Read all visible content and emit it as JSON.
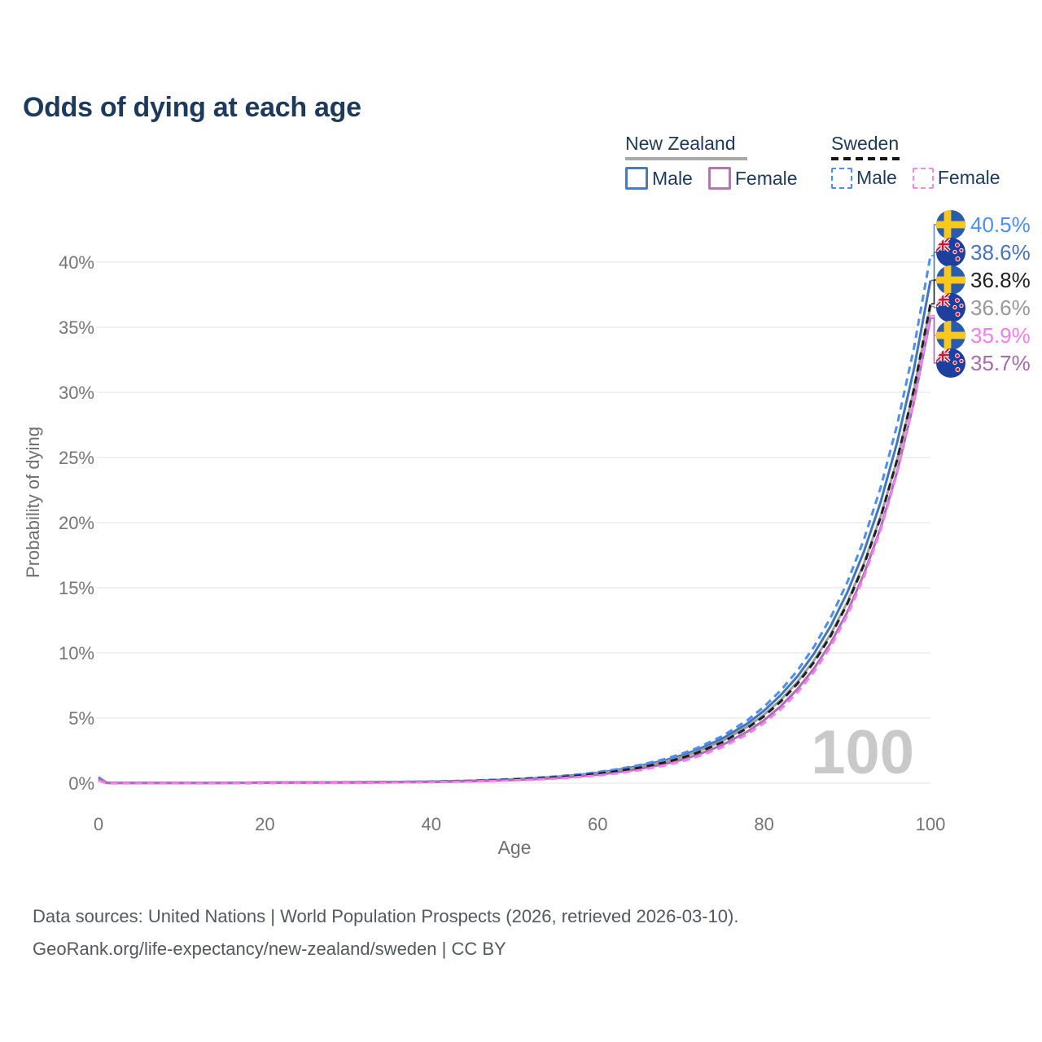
{
  "title": "Odds of dying at each age",
  "watermark_age": "100",
  "legend": {
    "groups": [
      {
        "country": "New Zealand",
        "line_style": "solid",
        "underline_color": "#a9a9a9",
        "items": [
          {
            "label": "Male",
            "color": "#4d7ab8",
            "dashed": false
          },
          {
            "label": "Female",
            "color": "#b277b2",
            "dashed": false
          }
        ]
      },
      {
        "country": "Sweden",
        "line_style": "dashed",
        "underline_color": "#161616",
        "items": [
          {
            "label": "Male",
            "color": "#4b8ef5",
            "dashed": true
          },
          {
            "label": "Female",
            "color": "#fc84ef",
            "dashed": true
          }
        ]
      }
    ]
  },
  "chart_data": {
    "type": "line",
    "title": "Odds of dying at each age",
    "xlabel": "Age",
    "ylabel": "Probability of dying",
    "xlim": [
      0,
      100
    ],
    "ylim": [
      0,
      42
    ],
    "grid": "horizontal",
    "x_ticks": [
      0,
      20,
      40,
      60,
      80,
      100
    ],
    "y_ticks": [
      0,
      5,
      10,
      15,
      20,
      25,
      30,
      35,
      40
    ],
    "y_tick_labels": [
      "0%",
      "5%",
      "10%",
      "15%",
      "20%",
      "25%",
      "30%",
      "35%",
      "40%"
    ],
    "ages": [
      0,
      1,
      2,
      5,
      10,
      15,
      20,
      25,
      30,
      35,
      40,
      45,
      50,
      52,
      55,
      58,
      60,
      62,
      65,
      68,
      70,
      72,
      75,
      78,
      80,
      82,
      84,
      86,
      88,
      90,
      92,
      94,
      96,
      98,
      100
    ],
    "series": [
      {
        "key": "nz_male",
        "name": "New Zealand Male",
        "country": "New Zealand",
        "sex": "Male",
        "color": "#4574bd",
        "dashed": false,
        "values": [
          0.45,
          0.03,
          0.02,
          0.015,
          0.01,
          0.015,
          0.05,
          0.06,
          0.07,
          0.09,
          0.12,
          0.19,
          0.3,
          0.37,
          0.49,
          0.65,
          0.8,
          0.98,
          1.31,
          1.74,
          2.11,
          2.56,
          3.43,
          4.58,
          5.56,
          6.75,
          8.19,
          9.94,
          12.06,
          14.64,
          17.77,
          21.56,
          26.17,
          31.76,
          38.6
        ]
      },
      {
        "key": "nz_overall",
        "name": "New Zealand Both sexes",
        "country": "New Zealand",
        "sex": "Both",
        "color": "#9d9d9d",
        "dashed": false,
        "values": [
          0.4,
          0.025,
          0.018,
          0.012,
          0.01,
          0.012,
          0.04,
          0.05,
          0.06,
          0.08,
          0.11,
          0.18,
          0.29,
          0.35,
          0.46,
          0.61,
          0.75,
          0.92,
          1.23,
          1.64,
          1.99,
          2.42,
          3.24,
          4.34,
          5.26,
          6.39,
          7.76,
          9.42,
          11.43,
          13.88,
          16.85,
          20.46,
          24.83,
          30.15,
          36.6
        ]
      },
      {
        "key": "nz_female",
        "name": "New Zealand Female",
        "country": "New Zealand",
        "sex": "Female",
        "color": "#aa6fb5",
        "dashed": false,
        "values": [
          0.38,
          0.02,
          0.015,
          0.01,
          0.008,
          0.01,
          0.03,
          0.035,
          0.04,
          0.06,
          0.09,
          0.15,
          0.24,
          0.29,
          0.4,
          0.53,
          0.65,
          0.8,
          1.08,
          1.46,
          1.78,
          2.17,
          2.93,
          3.96,
          4.83,
          5.9,
          7.21,
          8.8,
          10.75,
          13.13,
          16.04,
          19.59,
          23.93,
          29.23,
          35.7
        ]
      },
      {
        "key": "se_male",
        "name": "Sweden Male",
        "country": "Sweden",
        "sex": "Male",
        "color": "#4b8ef5",
        "dashed": true,
        "values": [
          0.25,
          0.02,
          0.015,
          0.01,
          0.008,
          0.01,
          0.03,
          0.04,
          0.05,
          0.08,
          0.12,
          0.2,
          0.32,
          0.39,
          0.52,
          0.69,
          0.85,
          1.03,
          1.38,
          1.84,
          2.23,
          2.71,
          3.62,
          4.84,
          5.87,
          7.12,
          8.63,
          10.47,
          12.71,
          15.41,
          18.7,
          22.68,
          27.52,
          33.38,
          40.5
        ]
      },
      {
        "key": "se_overall",
        "name": "Sweden Both sexes",
        "country": "Sweden",
        "sex": "Both",
        "color": "#1f1f1f",
        "dashed": true,
        "values": [
          0.22,
          0.015,
          0.012,
          0.008,
          0.007,
          0.009,
          0.025,
          0.03,
          0.04,
          0.06,
          0.1,
          0.16,
          0.27,
          0.33,
          0.44,
          0.59,
          0.72,
          0.88,
          1.18,
          1.58,
          1.92,
          2.34,
          3.15,
          4.23,
          5.14,
          6.26,
          7.63,
          9.28,
          11.3,
          13.76,
          16.75,
          20.39,
          24.83,
          30.23,
          36.8
        ]
      },
      {
        "key": "se_female",
        "name": "Sweden Female",
        "country": "Sweden",
        "sex": "Female",
        "color": "#fb7af0",
        "dashed": true,
        "values": [
          0.2,
          0.012,
          0.01,
          0.007,
          0.006,
          0.008,
          0.02,
          0.025,
          0.03,
          0.05,
          0.08,
          0.13,
          0.21,
          0.26,
          0.35,
          0.48,
          0.59,
          0.73,
          0.99,
          1.35,
          1.65,
          2.03,
          2.76,
          3.76,
          4.61,
          5.67,
          6.95,
          8.54,
          10.48,
          12.87,
          15.8,
          19.4,
          23.82,
          29.24,
          35.9
        ]
      }
    ],
    "end_labels": [
      {
        "series": "se_male",
        "text": "40.5%",
        "color": "#4b8ef5",
        "flag_icon": "sweden-flag-icon"
      },
      {
        "series": "nz_male",
        "text": "38.6%",
        "color": "#4574bd",
        "flag_icon": "new-zealand-flag-icon"
      },
      {
        "series": "se_overall",
        "text": "36.8%",
        "color": "#1f1f1f",
        "flag_icon": "sweden-flag-icon"
      },
      {
        "series": "nz_overall",
        "text": "36.6%",
        "color": "#989898",
        "flag_icon": "new-zealand-flag-icon"
      },
      {
        "series": "se_female",
        "text": "35.9%",
        "color": "#fb7af0",
        "flag_icon": "sweden-flag-icon"
      },
      {
        "series": "nz_female",
        "text": "35.7%",
        "color": "#a56cab",
        "flag_icon": "new-zealand-flag-icon"
      }
    ],
    "legend_position": "top-right"
  },
  "footer": {
    "line1": "Data sources: United Nations | World Population Prospects (2026, retrieved 2026-03-10).",
    "line2": "GeoRank.org/life-expectancy/new-zealand/sweden | CC BY"
  }
}
